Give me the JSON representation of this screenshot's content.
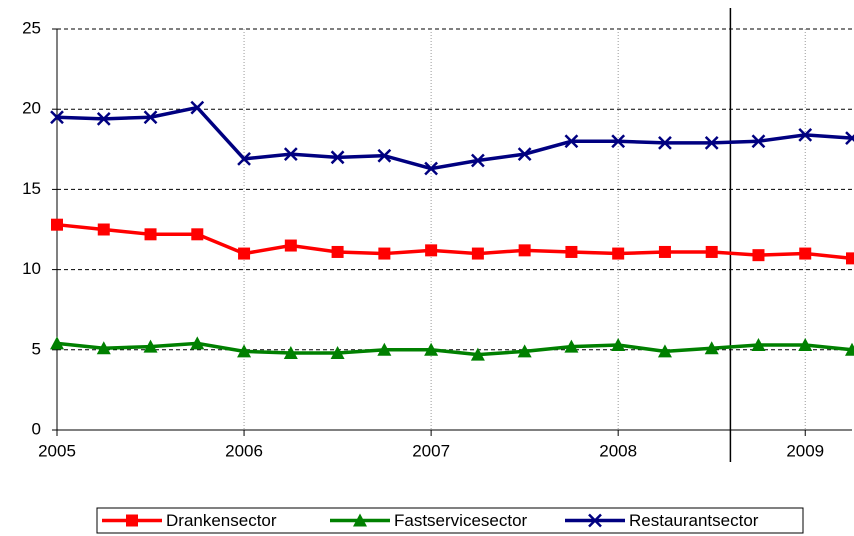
{
  "chart_data": {
    "type": "line",
    "x": [
      2005,
      2005.25,
      2005.5,
      2005.75,
      2006,
      2006.25,
      2006.5,
      2006.75,
      2007,
      2007.25,
      2007.5,
      2007.75,
      2008,
      2008.25,
      2008.5,
      2008.75,
      2009,
      2009.25
    ],
    "series": [
      {
        "name": "Drankensector",
        "color": "#ff0000",
        "marker": "square",
        "values": [
          12.8,
          12.5,
          12.2,
          12.2,
          11.0,
          11.5,
          11.1,
          11.0,
          11.2,
          11.0,
          11.2,
          11.1,
          11.0,
          11.1,
          11.1,
          10.9,
          11.0,
          10.7
        ]
      },
      {
        "name": "Fastservicesector",
        "color": "#008000",
        "marker": "triangle",
        "values": [
          5.4,
          5.1,
          5.2,
          5.4,
          4.9,
          4.8,
          4.8,
          5.0,
          5.0,
          4.7,
          4.9,
          5.2,
          5.3,
          4.9,
          5.1,
          5.3,
          5.3,
          5.0
        ]
      },
      {
        "name": "Restaurantsector",
        "color": "#000080",
        "marker": "x",
        "values": [
          19.5,
          19.4,
          19.5,
          20.1,
          16.9,
          17.2,
          17.0,
          17.1,
          16.3,
          16.8,
          17.2,
          18.0,
          18.0,
          17.9,
          17.9,
          18.0,
          18.4,
          18.2
        ]
      }
    ],
    "xlim": [
      2005,
      2009.25
    ],
    "xticks": [
      2005,
      2006,
      2007,
      2008,
      2009
    ],
    "ylim": [
      0,
      25
    ],
    "yticks": [
      0,
      5,
      10,
      15,
      20,
      25
    ],
    "vlines": [
      2008.6
    ],
    "grid": true,
    "legend": "bottom"
  }
}
